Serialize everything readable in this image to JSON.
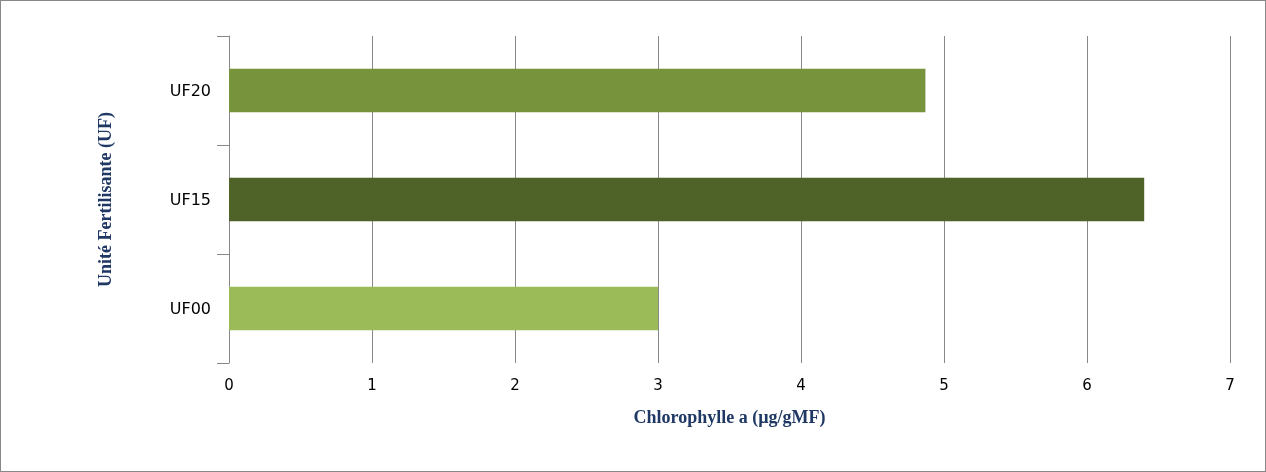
{
  "chart_data": {
    "type": "bar",
    "orientation": "horizontal",
    "categories": [
      "UF20",
      "UF15",
      "UF00"
    ],
    "values": [
      4.87,
      6.4,
      3.0
    ],
    "colors": [
      "#77933c",
      "#4f6228",
      "#9bbb59"
    ],
    "xlim": [
      0,
      7
    ],
    "xticks": [
      0,
      1,
      2,
      3,
      4,
      5,
      6,
      7
    ],
    "xlabel": "Chlorophylle a (µg/gMF)",
    "ylabel": "Unité Fertilisante (UF)",
    "grid": "x"
  }
}
